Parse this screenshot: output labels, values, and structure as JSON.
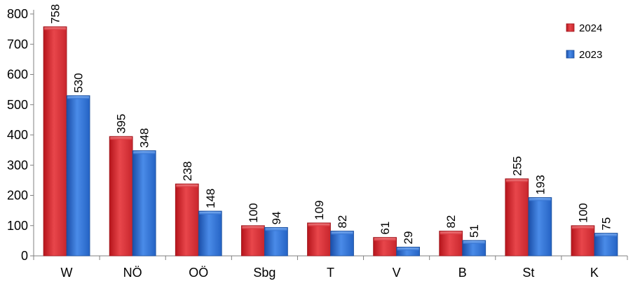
{
  "chart_data": {
    "type": "bar",
    "categories": [
      "W",
      "NÖ",
      "OÖ",
      "Sbg",
      "T",
      "V",
      "B",
      "St",
      "K"
    ],
    "series": [
      {
        "name": "2024",
        "color": "#d9333a",
        "values": [
          758,
          395,
          238,
          100,
          109,
          61,
          82,
          255,
          100
        ]
      },
      {
        "name": "2023",
        "color": "#2f6fd0",
        "values": [
          530,
          348,
          148,
          94,
          82,
          29,
          51,
          193,
          75
        ]
      }
    ],
    "title": "",
    "xlabel": "",
    "ylabel": "",
    "ylim": [
      0,
      800
    ],
    "yticks": [
      0,
      100,
      200,
      300,
      400,
      500,
      600,
      700,
      800
    ],
    "grid": false,
    "legend_position": "top-right",
    "data_label_orientation": "vertical"
  }
}
